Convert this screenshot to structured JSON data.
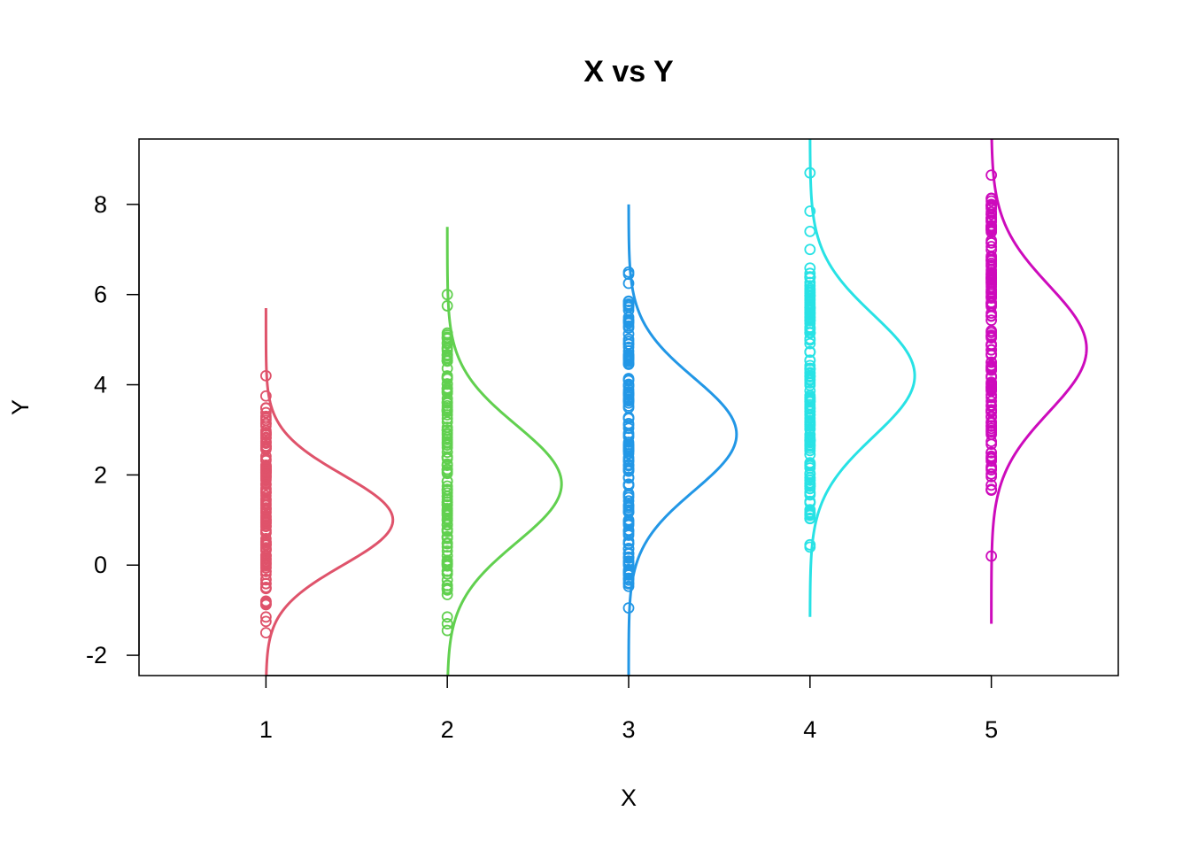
{
  "chart_data": {
    "type": "scatter",
    "title": "X vs Y",
    "xlabel": "X",
    "ylabel": "Y",
    "xlim": [
      0.3,
      5.7
    ],
    "ylim": [
      -2.45,
      9.45
    ],
    "x_ticks": [
      1,
      2,
      3,
      4,
      5
    ],
    "y_ticks": [
      -2,
      0,
      2,
      4,
      6,
      8
    ],
    "grid": false,
    "legend": "none",
    "density_scale_x_per_unit_density": 1.75,
    "series": [
      {
        "x": 1,
        "color": "#DF536B",
        "points_range": [
          -1.5,
          4.2
        ],
        "points_dense_range": [
          -0.9,
          3.5
        ],
        "points_outliers": [
          -1.5,
          -1.25,
          -1.15,
          3.75,
          4.2
        ],
        "density_mean": 1.0,
        "density_sd": 1.0,
        "density_peak": 0.4,
        "density_range": [
          -2.45,
          5.7
        ]
      },
      {
        "x": 2,
        "color": "#61D04F",
        "points_range": [
          -1.45,
          6.0
        ],
        "points_dense_range": [
          -0.7,
          5.2
        ],
        "points_outliers": [
          -1.45,
          -1.3,
          -1.15,
          5.75,
          6.0
        ],
        "density_mean": 1.8,
        "density_sd": 1.3,
        "density_peak": 0.36,
        "density_range": [
          -2.45,
          7.5
        ]
      },
      {
        "x": 3,
        "color": "#2297E6",
        "points_range": [
          -0.95,
          6.5
        ],
        "points_dense_range": [
          -0.5,
          5.9
        ],
        "points_outliers": [
          -0.95,
          6.25,
          6.45,
          6.5
        ],
        "density_mean": 2.9,
        "density_sd": 1.25,
        "density_peak": 0.34,
        "density_range": [
          -2.45,
          8.0
        ]
      },
      {
        "x": 4,
        "color": "#28E2E5",
        "points_range": [
          0.4,
          8.7
        ],
        "points_dense_range": [
          1.0,
          6.6
        ],
        "points_outliers": [
          0.4,
          0.45,
          7.0,
          7.4,
          7.85,
          8.7
        ],
        "density_mean": 4.2,
        "density_sd": 1.35,
        "density_peak": 0.33,
        "density_range": [
          -1.15,
          9.45
        ]
      },
      {
        "x": 5,
        "color": "#CD0BBC",
        "points_range": [
          0.2,
          8.65
        ],
        "points_dense_range": [
          1.6,
          8.2
        ],
        "points_outliers": [
          0.2,
          8.65
        ],
        "density_mean": 4.8,
        "density_sd": 1.4,
        "density_peak": 0.3,
        "density_range": [
          -1.3,
          9.45
        ]
      }
    ]
  }
}
